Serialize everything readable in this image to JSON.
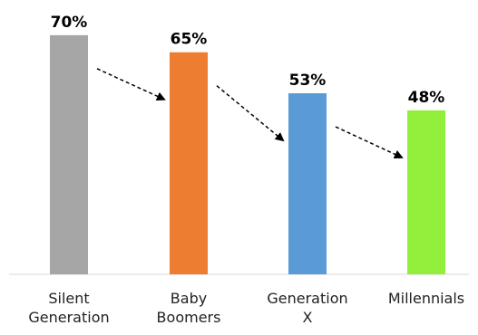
{
  "chart_data": {
    "type": "bar",
    "title": "",
    "xlabel": "",
    "ylabel": "",
    "ylim": [
      0,
      75
    ],
    "grid": false,
    "legend": "none",
    "categories": [
      {
        "lines": [
          "Silent",
          "Generation"
        ]
      },
      {
        "lines": [
          "Baby",
          "Boomers"
        ]
      },
      {
        "lines": [
          "Generation",
          "X"
        ]
      },
      {
        "lines": [
          "Millennials"
        ]
      }
    ],
    "values": [
      70,
      65,
      53,
      48
    ],
    "value_labels": [
      "70%",
      "65%",
      "53%",
      "48%"
    ],
    "colors": [
      "#a6a6a6",
      "#ed7d31",
      "#5b9bd5",
      "#92f03c"
    ],
    "annotations": {
      "trend_arrows": "dashed arrows between consecutive bars pointing downward"
    }
  }
}
